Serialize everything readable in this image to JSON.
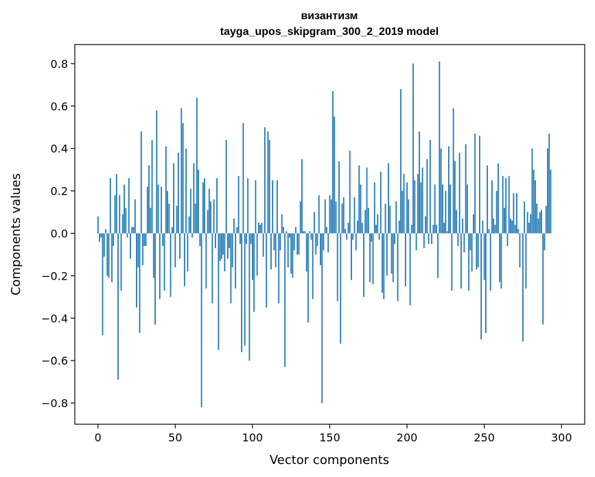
{
  "chart_data": {
    "type": "bar",
    "title": "византизм",
    "subtitle": "tayga_upos_skipgram_300_2_2019 model",
    "xlabel": "Vector components",
    "ylabel": "Components values",
    "xlim": [
      -15,
      315
    ],
    "ylim": [
      -0.9,
      0.89
    ],
    "xticks": [
      0,
      50,
      100,
      150,
      200,
      250,
      300
    ],
    "yticks": [
      -0.8,
      -0.6,
      -0.4,
      -0.2,
      0.0,
      0.2,
      0.4,
      0.6,
      0.8
    ],
    "ytick_labels": [
      "−0.8",
      "−0.6",
      "−0.4",
      "−0.2",
      "0.0",
      "0.2",
      "0.4",
      "0.6",
      "0.8"
    ],
    "color": "#1f77b4",
    "values": [
      0.08,
      -0.04,
      -0.02,
      -0.48,
      -0.11,
      0.02,
      -0.2,
      -0.21,
      0.26,
      -0.23,
      -0.06,
      0.18,
      0.28,
      -0.69,
      0.18,
      -0.27,
      0.09,
      0.23,
      0.12,
      -0.02,
      0.26,
      -0.12,
      0.03,
      0.03,
      0.16,
      -0.35,
      -0.16,
      -0.47,
      0.48,
      -0.15,
      -0.06,
      -0.06,
      0.22,
      0.32,
      0.12,
      0.44,
      -0.21,
      -0.43,
      0.58,
      0.23,
      -0.31,
      0.22,
      -0.06,
      -0.27,
      0.41,
      0.2,
      0.14,
      -0.3,
      0.03,
      0.33,
      -0.16,
      0.13,
      0.38,
      -0.12,
      0.59,
      0.52,
      -0.25,
      0.4,
      -0.18,
      0.08,
      0.21,
      -0.02,
      0.33,
      0.14,
      0.64,
      0.3,
      -0.06,
      -0.82,
      0.24,
      0.26,
      -0.26,
      0.11,
      0.21,
      0.15,
      -0.33,
      0.16,
      -0.07,
      0.26,
      -0.55,
      -0.13,
      -0.12,
      -0.1,
      -0.18,
      0.44,
      -0.12,
      -0.07,
      -0.33,
      -0.16,
      0.07,
      -0.26,
      0.03,
      0.27,
      -0.05,
      -0.56,
      0.52,
      -0.53,
      -0.05,
      0.26,
      -0.6,
      -0.05,
      -0.22,
      -0.37,
      0.25,
      -0.2,
      0.05,
      0.04,
      0.05,
      -0.11,
      0.5,
      -0.35,
      0.48,
      0.44,
      -0.17,
      0.25,
      -0.08,
      -0.16,
      0.25,
      -0.33,
      -0.08,
      0.09,
      0.03,
      -0.63,
      0.01,
      -0.16,
      -0.02,
      -0.19,
      -0.21,
      -0.08,
      0.03,
      -0.1,
      -0.1,
      0.15,
      0.35,
      0.01,
      0.01,
      -0.18,
      -0.42,
      0.01,
      -0.03,
      -0.31,
      0.1,
      -0.1,
      -0.06,
      0.18,
      -0.15,
      -0.8,
      -0.08,
      0.16,
      0.03,
      -0.09,
      0.18,
      0.16,
      0.67,
      0.55,
      0.15,
      -0.32,
      0.34,
      -0.52,
      0.14,
      0.17,
      0.02,
      -0.03,
      0.05,
      0.39,
      -0.22,
      -0.03,
      0.17,
      -0.08,
      0.06,
      0.32,
      0.23,
      0.05,
      -0.3,
      0.11,
      0.31,
      0.12,
      -0.23,
      -0.04,
      -0.24,
      0.24,
      0.04,
      0.09,
      -0.03,
      0.29,
      -0.28,
      -0.31,
      0.14,
      -0.2,
      0.33,
      0.13,
      -0.19,
      -0.23,
      -0.05,
      0.15,
      -0.32,
      0.06,
      0.68,
      0.2,
      0.28,
      -0.25,
      0.24,
      0.16,
      -0.34,
      0.04,
      0.8,
      0.25,
      -0.08,
      0.28,
      0.48,
      0.24,
      0.31,
      -0.07,
      0.08,
      0.35,
      -0.05,
      0.44,
      -0.05,
      0.04,
      0.23,
      0.04,
      -0.21,
      0.81,
      0.4,
      0.23,
      0.05,
      0.2,
      0.01,
      0.41,
      0.23,
      -0.27,
      0.59,
      0.34,
      0.11,
      -0.06,
      0.38,
      -0.26,
      0.07,
      -0.09,
      0.42,
      0.23,
      -0.27,
      -0.08,
      -0.18,
      0.09,
      0.47,
      -0.17,
      -0.16,
      0.46,
      -0.5,
      0.06,
      -0.22,
      -0.47,
      0.32,
      0.02,
      -0.27,
      0.25,
      0.07,
      0.04,
      0.2,
      0.33,
      -0.23,
      -0.26,
      0.27,
      0.12,
      0.26,
      -0.06,
      0.27,
      0.07,
      0.06,
      0.19,
      0.04,
      0.19,
      0.02,
      -0.16,
      0.0,
      -0.51,
      0.15,
      -0.26,
      0.1,
      0.05,
      0.09,
      0.4,
      0.3,
      0.25,
      0.14,
      0.07,
      0.1,
      0.11,
      -0.43,
      -0.08,
      0.13,
      0.4,
      0.47,
      0.3
    ]
  }
}
